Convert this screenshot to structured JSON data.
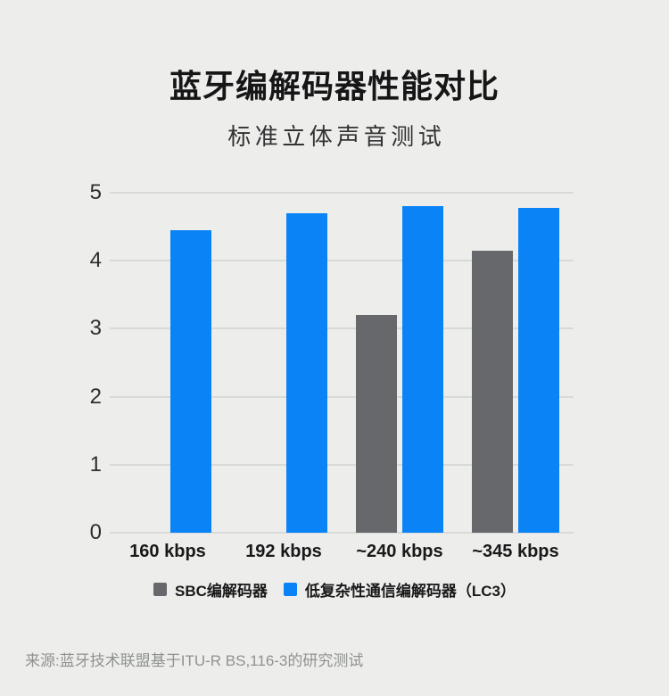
{
  "header": {
    "title": "蓝牙编解码器性能对比",
    "subtitle": "标准立体声音测试"
  },
  "footer": {
    "source": "来源:蓝牙技术联盟基于ITU-R BS,116-3的研究测试"
  },
  "colors": {
    "background": "#edeeec",
    "sbc_gray": "#66686c",
    "lc3_blue": "#0a83f7",
    "gridline": "#d8dad8",
    "text_dark": "#191919",
    "text_muted": "#8f9290"
  },
  "chart_data": {
    "type": "bar",
    "title": "蓝牙编解码器性能对比",
    "subtitle": "标准立体声音测试",
    "categories": [
      "160 kbps",
      "192 kbps",
      "~240 kbps",
      "~345 kbps"
    ],
    "series": [
      {
        "name": "SBC编解码器",
        "color": "#66686c",
        "values": [
          null,
          null,
          3.2,
          4.15
        ]
      },
      {
        "name": "低复杂性通信编解码器（LC3）",
        "color": "#0a83f7",
        "values": [
          4.45,
          4.7,
          4.8,
          4.78
        ]
      }
    ],
    "xlabel": "",
    "ylabel": "",
    "ylim": [
      0,
      5
    ],
    "yticks": [
      0,
      1,
      2,
      3,
      4,
      5
    ],
    "grid": true,
    "legend_position": "bottom",
    "source": "来源:蓝牙技术联盟基于ITU-R BS,116-3的研究测试"
  }
}
